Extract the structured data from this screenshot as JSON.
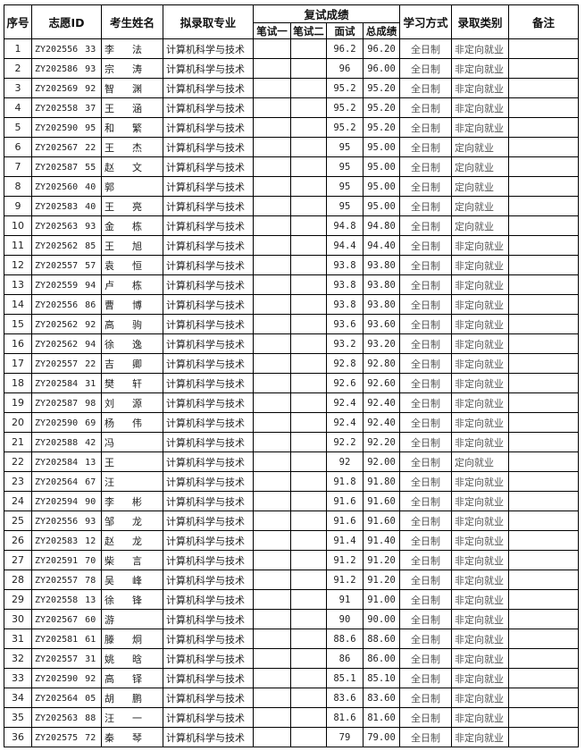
{
  "headers": {
    "seq": "序号",
    "id": "志愿ID",
    "name": "考生姓名",
    "major": "拟录取专业",
    "retest": "复试成绩",
    "written1": "笔试一",
    "written2": "笔试二",
    "interview": "面试",
    "total": "总成绩",
    "study_mode": "学习方式",
    "category": "录取类别",
    "remark": "备注"
  },
  "rows": [
    {
      "seq": "1",
      "id_prefix": "ZY202556",
      "id_suffix": "33",
      "surname": "李",
      "given": "法",
      "major": "计算机科学与技术",
      "written1": "",
      "written2": "",
      "interview": "96.2",
      "total": "96.20",
      "mode": "全日制",
      "category": "非定向就业",
      "remark": ""
    },
    {
      "seq": "2",
      "id_prefix": "ZY202586",
      "id_suffix": "93",
      "surname": "宗",
      "given": "涛",
      "major": "计算机科学与技术",
      "written1": "",
      "written2": "",
      "interview": "96",
      "total": "96.00",
      "mode": "全日制",
      "category": "非定向就业",
      "remark": ""
    },
    {
      "seq": "3",
      "id_prefix": "ZY202569",
      "id_suffix": "92",
      "surname": "智",
      "given": "渊",
      "major": "计算机科学与技术",
      "written1": "",
      "written2": "",
      "interview": "95.2",
      "total": "95.20",
      "mode": "全日制",
      "category": "非定向就业",
      "remark": ""
    },
    {
      "seq": "4",
      "id_prefix": "ZY202558",
      "id_suffix": "37",
      "surname": "王",
      "given": "涵",
      "major": "计算机科学与技术",
      "written1": "",
      "written2": "",
      "interview": "95.2",
      "total": "95.20",
      "mode": "全日制",
      "category": "非定向就业",
      "remark": ""
    },
    {
      "seq": "5",
      "id_prefix": "ZY202590",
      "id_suffix": "95",
      "surname": "和",
      "given": "繁",
      "major": "计算机科学与技术",
      "written1": "",
      "written2": "",
      "interview": "95.2",
      "total": "95.20",
      "mode": "全日制",
      "category": "非定向就业",
      "remark": ""
    },
    {
      "seq": "6",
      "id_prefix": "ZY202567",
      "id_suffix": "22",
      "surname": "王",
      "given": "杰",
      "major": "计算机科学与技术",
      "written1": "",
      "written2": "",
      "interview": "95",
      "total": "95.00",
      "mode": "全日制",
      "category": "定向就业",
      "remark": ""
    },
    {
      "seq": "7",
      "id_prefix": "ZY202587",
      "id_suffix": "55",
      "surname": "赵",
      "given": "文",
      "major": "计算机科学与技术",
      "written1": "",
      "written2": "",
      "interview": "95",
      "total": "95.00",
      "mode": "全日制",
      "category": "定向就业",
      "remark": ""
    },
    {
      "seq": "8",
      "id_prefix": "ZY202560",
      "id_suffix": "40",
      "surname": "郭",
      "given": "",
      "major": "计算机科学与技术",
      "written1": "",
      "written2": "",
      "interview": "95",
      "total": "95.00",
      "mode": "全日制",
      "category": "定向就业",
      "remark": ""
    },
    {
      "seq": "9",
      "id_prefix": "ZY202583",
      "id_suffix": "40",
      "surname": "王",
      "given": "亮",
      "major": "计算机科学与技术",
      "written1": "",
      "written2": "",
      "interview": "95",
      "total": "95.00",
      "mode": "全日制",
      "category": "定向就业",
      "remark": ""
    },
    {
      "seq": "10",
      "id_prefix": "ZY202563",
      "id_suffix": "93",
      "surname": "金",
      "given": "栋",
      "major": "计算机科学与技术",
      "written1": "",
      "written2": "",
      "interview": "94.8",
      "total": "94.80",
      "mode": "全日制",
      "category": "定向就业",
      "remark": ""
    },
    {
      "seq": "11",
      "id_prefix": "ZY202562",
      "id_suffix": "85",
      "surname": "王",
      "given": "旭",
      "major": "计算机科学与技术",
      "written1": "",
      "written2": "",
      "interview": "94.4",
      "total": "94.40",
      "mode": "全日制",
      "category": "非定向就业",
      "remark": ""
    },
    {
      "seq": "12",
      "id_prefix": "ZY202557",
      "id_suffix": "57",
      "surname": "袁",
      "given": "恒",
      "major": "计算机科学与技术",
      "written1": "",
      "written2": "",
      "interview": "93.8",
      "total": "93.80",
      "mode": "全日制",
      "category": "非定向就业",
      "remark": ""
    },
    {
      "seq": "13",
      "id_prefix": "ZY202559",
      "id_suffix": "94",
      "surname": "卢",
      "given": "栋",
      "major": "计算机科学与技术",
      "written1": "",
      "written2": "",
      "interview": "93.8",
      "total": "93.80",
      "mode": "全日制",
      "category": "非定向就业",
      "remark": ""
    },
    {
      "seq": "14",
      "id_prefix": "ZY202556",
      "id_suffix": "86",
      "surname": "曹",
      "given": "博",
      "major": "计算机科学与技术",
      "written1": "",
      "written2": "",
      "interview": "93.8",
      "total": "93.80",
      "mode": "全日制",
      "category": "非定向就业",
      "remark": ""
    },
    {
      "seq": "15",
      "id_prefix": "ZY202562",
      "id_suffix": "92",
      "surname": "高",
      "given": "驹",
      "major": "计算机科学与技术",
      "written1": "",
      "written2": "",
      "interview": "93.6",
      "total": "93.60",
      "mode": "全日制",
      "category": "非定向就业",
      "remark": ""
    },
    {
      "seq": "16",
      "id_prefix": "ZY202562",
      "id_suffix": "94",
      "surname": "徐",
      "given": "逸",
      "major": "计算机科学与技术",
      "written1": "",
      "written2": "",
      "interview": "93.2",
      "total": "93.20",
      "mode": "全日制",
      "category": "非定向就业",
      "remark": ""
    },
    {
      "seq": "17",
      "id_prefix": "ZY202557",
      "id_suffix": "22",
      "surname": "吉",
      "given": "卿",
      "major": "计算机科学与技术",
      "written1": "",
      "written2": "",
      "interview": "92.8",
      "total": "92.80",
      "mode": "全日制",
      "category": "非定向就业",
      "remark": ""
    },
    {
      "seq": "18",
      "id_prefix": "ZY202584",
      "id_suffix": "31",
      "surname": "樊",
      "given": "轩",
      "major": "计算机科学与技术",
      "written1": "",
      "written2": "",
      "interview": "92.6",
      "total": "92.60",
      "mode": "全日制",
      "category": "非定向就业",
      "remark": ""
    },
    {
      "seq": "19",
      "id_prefix": "ZY202587",
      "id_suffix": "98",
      "surname": "刘",
      "given": "源",
      "major": "计算机科学与技术",
      "written1": "",
      "written2": "",
      "interview": "92.4",
      "total": "92.40",
      "mode": "全日制",
      "category": "非定向就业",
      "remark": ""
    },
    {
      "seq": "20",
      "id_prefix": "ZY202590",
      "id_suffix": "69",
      "surname": "杨",
      "given": "伟",
      "major": "计算机科学与技术",
      "written1": "",
      "written2": "",
      "interview": "92.4",
      "total": "92.40",
      "mode": "全日制",
      "category": "非定向就业",
      "remark": ""
    },
    {
      "seq": "21",
      "id_prefix": "ZY202588",
      "id_suffix": "42",
      "surname": "冯",
      "given": "",
      "major": "计算机科学与技术",
      "written1": "",
      "written2": "",
      "interview": "92.2",
      "total": "92.20",
      "mode": "全日制",
      "category": "非定向就业",
      "remark": ""
    },
    {
      "seq": "22",
      "id_prefix": "ZY202584",
      "id_suffix": "13",
      "surname": "王",
      "given": "",
      "major": "计算机科学与技术",
      "written1": "",
      "written2": "",
      "interview": "92",
      "total": "92.00",
      "mode": "全日制",
      "category": "定向就业",
      "remark": ""
    },
    {
      "seq": "23",
      "id_prefix": "ZY202564",
      "id_suffix": "67",
      "surname": "汪",
      "given": "",
      "major": "计算机科学与技术",
      "written1": "",
      "written2": "",
      "interview": "91.8",
      "total": "91.80",
      "mode": "全日制",
      "category": "非定向就业",
      "remark": ""
    },
    {
      "seq": "24",
      "id_prefix": "ZY202594",
      "id_suffix": "90",
      "surname": "李",
      "given": "彬",
      "major": "计算机科学与技术",
      "written1": "",
      "written2": "",
      "interview": "91.6",
      "total": "91.60",
      "mode": "全日制",
      "category": "非定向就业",
      "remark": ""
    },
    {
      "seq": "25",
      "id_prefix": "ZY202556",
      "id_suffix": "93",
      "surname": "邹",
      "given": "龙",
      "major": "计算机科学与技术",
      "written1": "",
      "written2": "",
      "interview": "91.6",
      "total": "91.60",
      "mode": "全日制",
      "category": "非定向就业",
      "remark": ""
    },
    {
      "seq": "26",
      "id_prefix": "ZY202583",
      "id_suffix": "12",
      "surname": "赵",
      "given": "龙",
      "major": "计算机科学与技术",
      "written1": "",
      "written2": "",
      "interview": "91.4",
      "total": "91.40",
      "mode": "全日制",
      "category": "非定向就业",
      "remark": ""
    },
    {
      "seq": "27",
      "id_prefix": "ZY202591",
      "id_suffix": "70",
      "surname": "柴",
      "given": "言",
      "major": "计算机科学与技术",
      "written1": "",
      "written2": "",
      "interview": "91.2",
      "total": "91.20",
      "mode": "全日制",
      "category": "非定向就业",
      "remark": ""
    },
    {
      "seq": "28",
      "id_prefix": "ZY202557",
      "id_suffix": "78",
      "surname": "吴",
      "given": "峰",
      "major": "计算机科学与技术",
      "written1": "",
      "written2": "",
      "interview": "91.2",
      "total": "91.20",
      "mode": "全日制",
      "category": "非定向就业",
      "remark": ""
    },
    {
      "seq": "29",
      "id_prefix": "ZY202558",
      "id_suffix": "13",
      "surname": "徐",
      "given": "锋",
      "major": "计算机科学与技术",
      "written1": "",
      "written2": "",
      "interview": "91",
      "total": "91.00",
      "mode": "全日制",
      "category": "非定向就业",
      "remark": ""
    },
    {
      "seq": "30",
      "id_prefix": "ZY202567",
      "id_suffix": "60",
      "surname": "游",
      "given": "",
      "major": "计算机科学与技术",
      "written1": "",
      "written2": "",
      "interview": "90",
      "total": "90.00",
      "mode": "全日制",
      "category": "非定向就业",
      "remark": ""
    },
    {
      "seq": "31",
      "id_prefix": "ZY202581",
      "id_suffix": "61",
      "surname": "滕",
      "given": "炯",
      "major": "计算机科学与技术",
      "written1": "",
      "written2": "",
      "interview": "88.6",
      "total": "88.60",
      "mode": "全日制",
      "category": "非定向就业",
      "remark": ""
    },
    {
      "seq": "32",
      "id_prefix": "ZY202557",
      "id_suffix": "31",
      "surname": "姚",
      "given": "晗",
      "major": "计算机科学与技术",
      "written1": "",
      "written2": "",
      "interview": "86",
      "total": "86.00",
      "mode": "全日制",
      "category": "非定向就业",
      "remark": ""
    },
    {
      "seq": "33",
      "id_prefix": "ZY202590",
      "id_suffix": "92",
      "surname": "高",
      "given": "铎",
      "major": "计算机科学与技术",
      "written1": "",
      "written2": "",
      "interview": "85.1",
      "total": "85.10",
      "mode": "全日制",
      "category": "非定向就业",
      "remark": ""
    },
    {
      "seq": "34",
      "id_prefix": "ZY202564",
      "id_suffix": "05",
      "surname": "胡",
      "given": "鹏",
      "major": "计算机科学与技术",
      "written1": "",
      "written2": "",
      "interview": "83.6",
      "total": "83.60",
      "mode": "全日制",
      "category": "非定向就业",
      "remark": ""
    },
    {
      "seq": "35",
      "id_prefix": "ZY202563",
      "id_suffix": "88",
      "surname": "汪",
      "given": "一",
      "major": "计算机科学与技术",
      "written1": "",
      "written2": "",
      "interview": "81.6",
      "total": "81.60",
      "mode": "全日制",
      "category": "非定向就业",
      "remark": ""
    },
    {
      "seq": "36",
      "id_prefix": "ZY202575",
      "id_suffix": "72",
      "surname": "秦",
      "given": "琴",
      "major": "计算机科学与技术",
      "written1": "",
      "written2": "",
      "interview": "79",
      "total": "79.00",
      "mode": "全日制",
      "category": "非定向就业",
      "remark": ""
    }
  ]
}
